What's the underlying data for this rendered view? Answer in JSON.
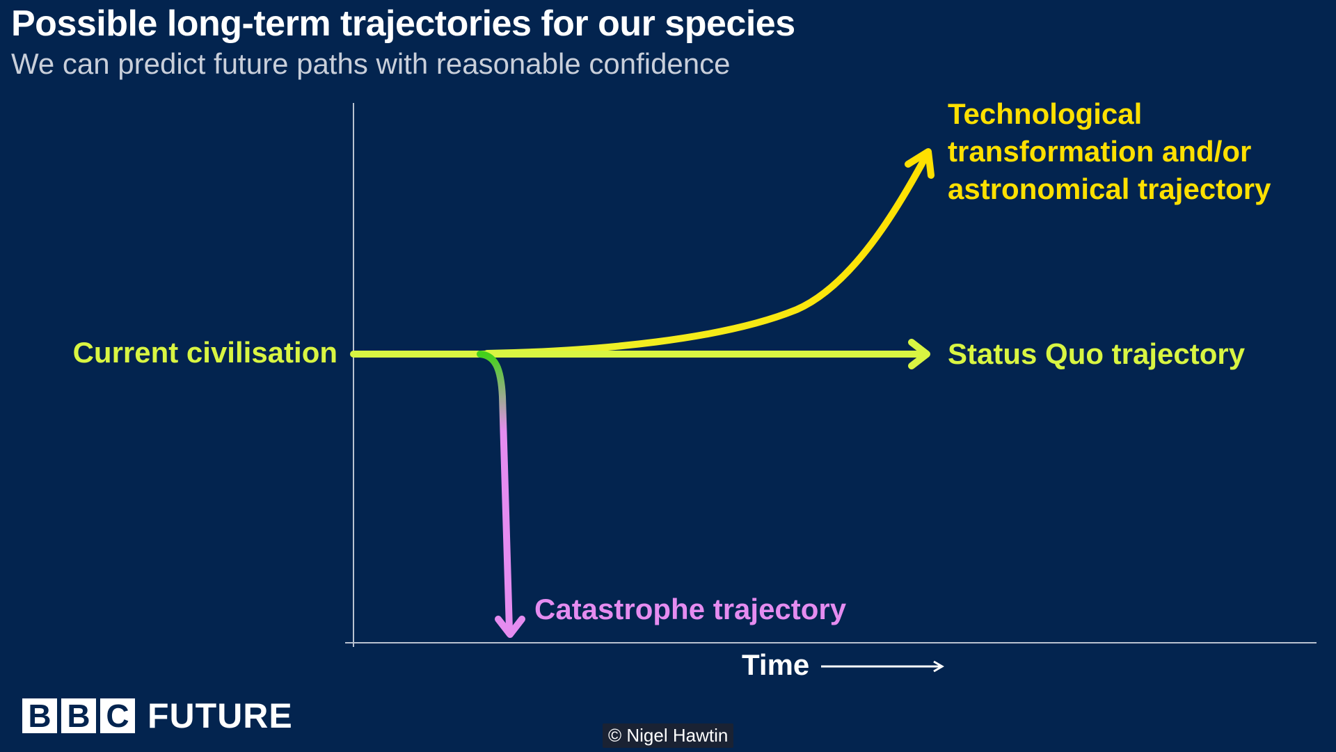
{
  "title": "Possible long-term trajectories for our species",
  "subtitle": "We can predict future paths with reasonable confidence",
  "labels": {
    "current": "Current civilisation",
    "status_quo": "Status Quo trajectory",
    "tech_line1": "Technological",
    "tech_line2": "transformation and/or",
    "tech_line3": "astronomical trajectory",
    "catastrophe": "Catastrophe trajectory",
    "time": "Time"
  },
  "brand": {
    "letters": [
      "B",
      "B",
      "C"
    ],
    "product": "FUTURE"
  },
  "credit": "© Nigel Hawtin",
  "colors": {
    "background": "#03244f",
    "status_quo": "#d9f542",
    "technological": "#ffe000",
    "catastrophe": "#e58cf0",
    "branch": "#44d11a",
    "axis": "#b9c2d0"
  }
}
